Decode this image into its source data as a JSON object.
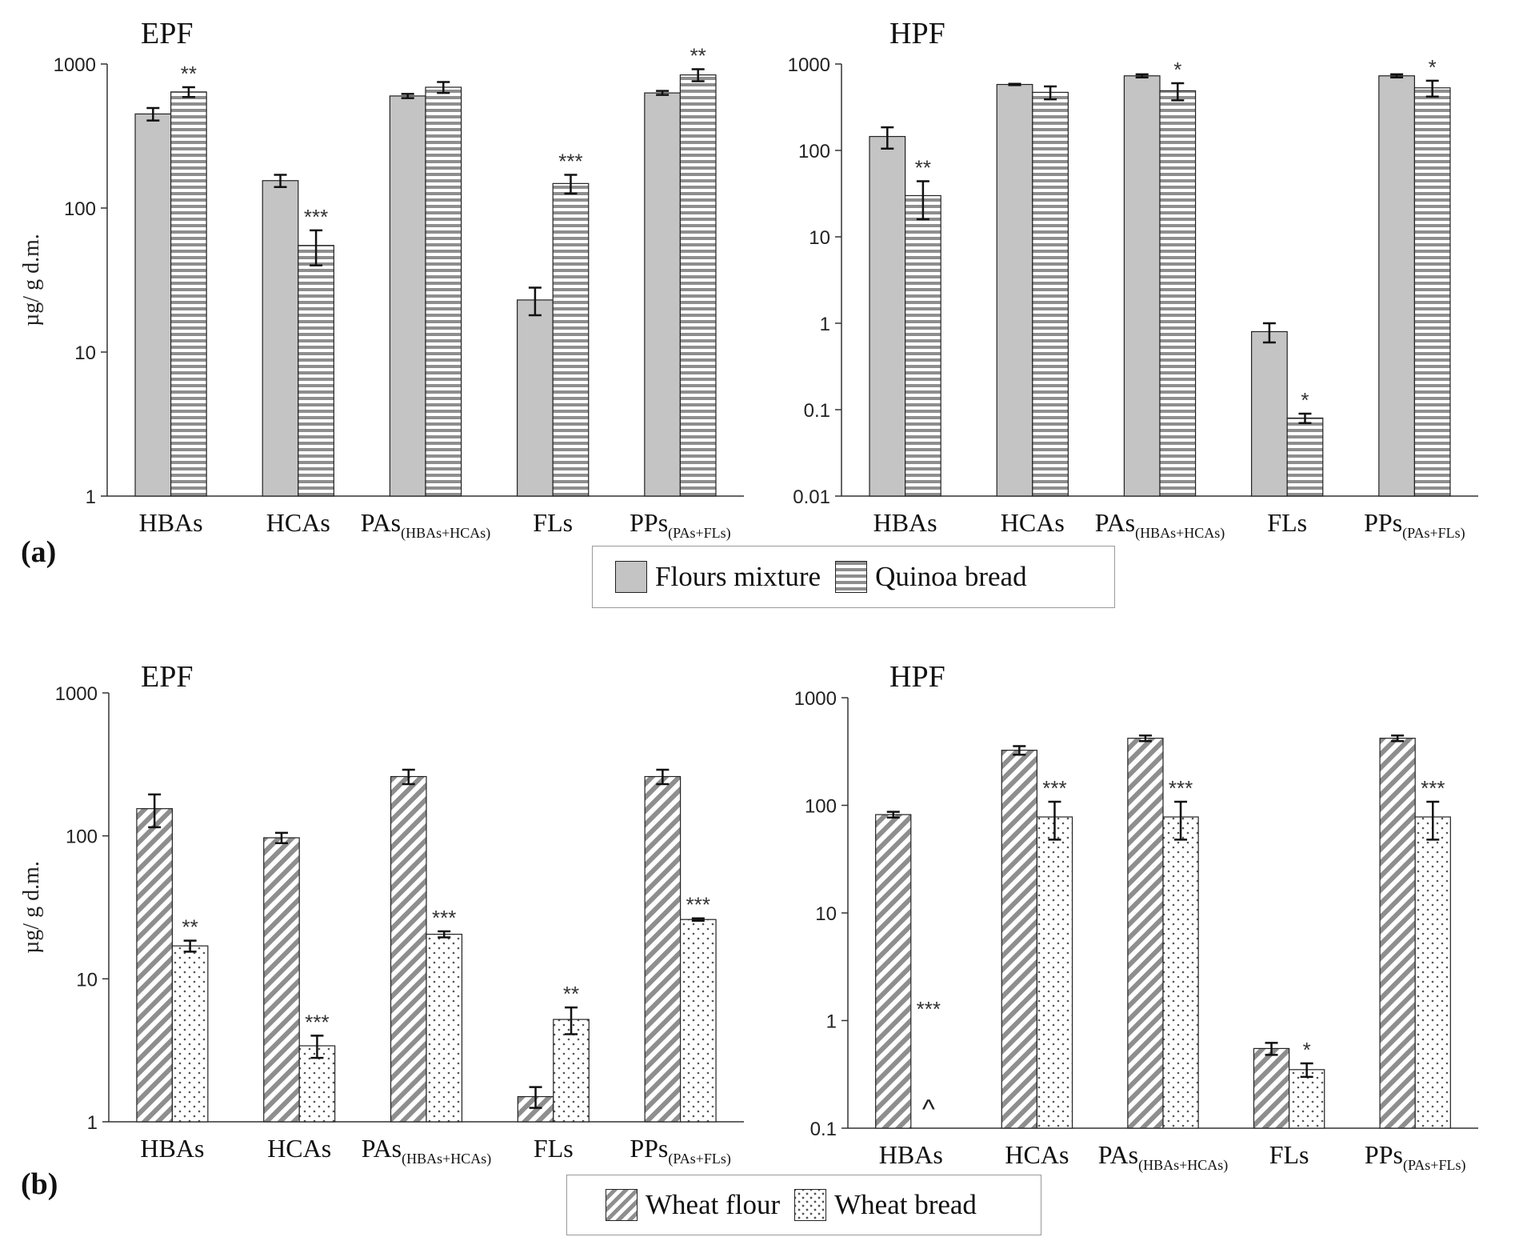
{
  "panels": [
    {
      "label": "(a)"
    },
    {
      "label": "(b)"
    }
  ],
  "legends": [
    {
      "items": [
        {
          "label": "Flours mixture",
          "pattern": "gray"
        },
        {
          "label": "Quinoa bread",
          "pattern": "hstripe"
        }
      ]
    },
    {
      "items": [
        {
          "label": "Wheat flour",
          "pattern": "diag"
        },
        {
          "label": "Wheat bread",
          "pattern": "dots"
        }
      ]
    }
  ],
  "colors": {
    "gray_fill": "#c4c4c4",
    "stripe": "#8e8e8e",
    "axis": "#333333",
    "text": "#111111"
  },
  "chart_data": [
    {
      "type": "bar",
      "title": "EPF",
      "ylabel": "µg/ g d.m.",
      "yscale": "log",
      "ylim": [
        1,
        1000
      ],
      "yticks": [
        "1",
        "10",
        "100",
        "1000"
      ],
      "categories": [
        {
          "main": "HBAs",
          "sub": ""
        },
        {
          "main": "HCAs",
          "sub": ""
        },
        {
          "main": "PAs",
          "sub": "(HBAs+HCAs)"
        },
        {
          "main": "FLs",
          "sub": ""
        },
        {
          "main": "PPs",
          "sub": "(PAs+FLs)"
        }
      ],
      "series": [
        {
          "name": "Flours mixture",
          "pattern": "gray",
          "values": [
            450,
            155,
            600,
            23,
            630
          ],
          "errors": [
            45,
            15,
            20,
            5,
            20
          ],
          "signif": [
            "",
            "",
            "",
            "",
            ""
          ]
        },
        {
          "name": "Quinoa bread",
          "pattern": "hstripe",
          "values": [
            640,
            55,
            690,
            148,
            840
          ],
          "errors": [
            50,
            15,
            60,
            22,
            80
          ],
          "signif": [
            "**",
            "***",
            "",
            "***",
            "**"
          ]
        }
      ]
    },
    {
      "type": "bar",
      "title": "HPF",
      "ylabel": "",
      "yscale": "log",
      "ylim": [
        0.01,
        1000
      ],
      "yticks": [
        "0.01",
        "0.1",
        "1",
        "10",
        "100",
        "1000"
      ],
      "categories": [
        {
          "main": "HBAs",
          "sub": ""
        },
        {
          "main": "HCAs",
          "sub": ""
        },
        {
          "main": "PAs",
          "sub": "(HBAs+HCAs)"
        },
        {
          "main": "FLs",
          "sub": ""
        },
        {
          "main": "PPs",
          "sub": "(PAs+FLs)"
        }
      ],
      "series": [
        {
          "name": "Flours mixture",
          "pattern": "gray",
          "values": [
            145,
            580,
            730,
            0.8,
            730
          ],
          "errors": [
            40,
            10,
            30,
            0.2,
            30
          ],
          "signif": [
            "",
            "",
            "",
            "",
            ""
          ]
        },
        {
          "name": "Quinoa bread",
          "pattern": "hstripe",
          "values": [
            30,
            470,
            490,
            0.08,
            530
          ],
          "errors": [
            14,
            80,
            110,
            0.01,
            110
          ],
          "signif": [
            "**",
            "",
            "*",
            "*",
            "*"
          ]
        }
      ]
    },
    {
      "type": "bar",
      "title": "EPF",
      "ylabel": "µg/ g d.m.",
      "yscale": "log",
      "ylim": [
        1,
        1000
      ],
      "yticks": [
        "1",
        "10",
        "100",
        "1000"
      ],
      "categories": [
        {
          "main": "HBAs",
          "sub": ""
        },
        {
          "main": "HCAs",
          "sub": ""
        },
        {
          "main": "PAs",
          "sub": "(HBAs+HCAs)"
        },
        {
          "main": "FLs",
          "sub": ""
        },
        {
          "main": "PPs",
          "sub": "(PAs+FLs)"
        }
      ],
      "series": [
        {
          "name": "Wheat flour",
          "pattern": "diag",
          "values": [
            155,
            97,
            260,
            1.5,
            260
          ],
          "errors": [
            40,
            8,
            30,
            0.25,
            30
          ],
          "signif": [
            "",
            "",
            "",
            "",
            ""
          ]
        },
        {
          "name": "Wheat bread",
          "pattern": "dots",
          "values": [
            17,
            3.4,
            20.5,
            5.2,
            26
          ],
          "errors": [
            1.5,
            0.6,
            1,
            1.1,
            0.5
          ],
          "signif": [
            "**",
            "***",
            "***",
            "**",
            "***"
          ]
        }
      ]
    },
    {
      "type": "bar",
      "title": "HPF",
      "ylabel": "",
      "yscale": "log",
      "ylim": [
        0.1,
        1000
      ],
      "yticks": [
        "0.1",
        "1",
        "10",
        "100",
        "1000"
      ],
      "categories": [
        {
          "main": "HBAs",
          "sub": ""
        },
        {
          "main": "HCAs",
          "sub": ""
        },
        {
          "main": "PAs",
          "sub": "(HBAs+HCAs)"
        },
        {
          "main": "FLs",
          "sub": ""
        },
        {
          "main": "PPs",
          "sub": "(PAs+FLs)"
        }
      ],
      "series": [
        {
          "name": "Wheat flour",
          "pattern": "diag",
          "values": [
            82,
            325,
            420,
            0.55,
            420
          ],
          "errors": [
            5,
            30,
            25,
            0.07,
            25
          ],
          "signif": [
            "",
            "",
            "",
            "",
            ""
          ]
        },
        {
          "name": "Wheat bread",
          "pattern": "dots",
          "values": [
            null,
            78,
            78,
            0.35,
            78
          ],
          "errors": [
            0,
            30,
            30,
            0.05,
            30
          ],
          "signif": [
            "***",
            "***",
            "***",
            "*",
            "***"
          ],
          "notes": [
            "^",
            "",
            "",
            "",
            ""
          ]
        }
      ]
    }
  ]
}
